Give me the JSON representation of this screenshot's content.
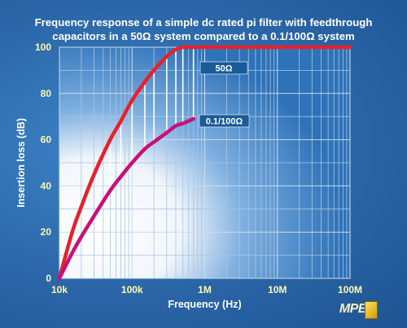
{
  "chart_data": {
    "type": "line",
    "title_line1": "Frequency response of a simple  dc rated  pi filter with feedthrough",
    "title_line2": "capacitors in a 50Ω system compared to a 0.1/100Ω system",
    "xlabel": "Frequency (Hz)",
    "ylabel": "Insertion loss (dB)",
    "x_scale": "log",
    "xlim": [
      10000,
      100000000
    ],
    "ylim": [
      0,
      100
    ],
    "x_ticks": [
      {
        "value": 10000,
        "label": "10k"
      },
      {
        "value": 100000,
        "label": "100k"
      },
      {
        "value": 1000000,
        "label": "1M"
      },
      {
        "value": 10000000,
        "label": "10M"
      },
      {
        "value": 100000000,
        "label": "100M"
      }
    ],
    "y_ticks": [
      {
        "value": 0,
        "label": "0"
      },
      {
        "value": 20,
        "label": "20"
      },
      {
        "value": 40,
        "label": "40"
      },
      {
        "value": 60,
        "label": "60"
      },
      {
        "value": 80,
        "label": "80"
      },
      {
        "value": 100,
        "label": "100"
      }
    ],
    "grid": true,
    "series": [
      {
        "name": "50Ω",
        "color": "#e8202a",
        "x": [
          10000,
          15000,
          20000,
          30000,
          50000,
          70000,
          100000,
          150000,
          200000,
          300000,
          400000,
          500000,
          700000,
          1000000,
          10000000,
          100000000
        ],
        "y": [
          0,
          20,
          31,
          45,
          60,
          68,
          77,
          85,
          90,
          96,
          99,
          100,
          100,
          100,
          100,
          100
        ]
      },
      {
        "name": "0.1/100Ω",
        "color": "#c8107a",
        "x": [
          10000,
          15000,
          20000,
          30000,
          50000,
          70000,
          100000,
          150000,
          200000,
          300000,
          400000,
          500000,
          700000
        ],
        "y": [
          0,
          11,
          18,
          27,
          38,
          44,
          50,
          56,
          59,
          63,
          66,
          67,
          69
        ]
      }
    ]
  },
  "logo": {
    "text": "MPE"
  }
}
